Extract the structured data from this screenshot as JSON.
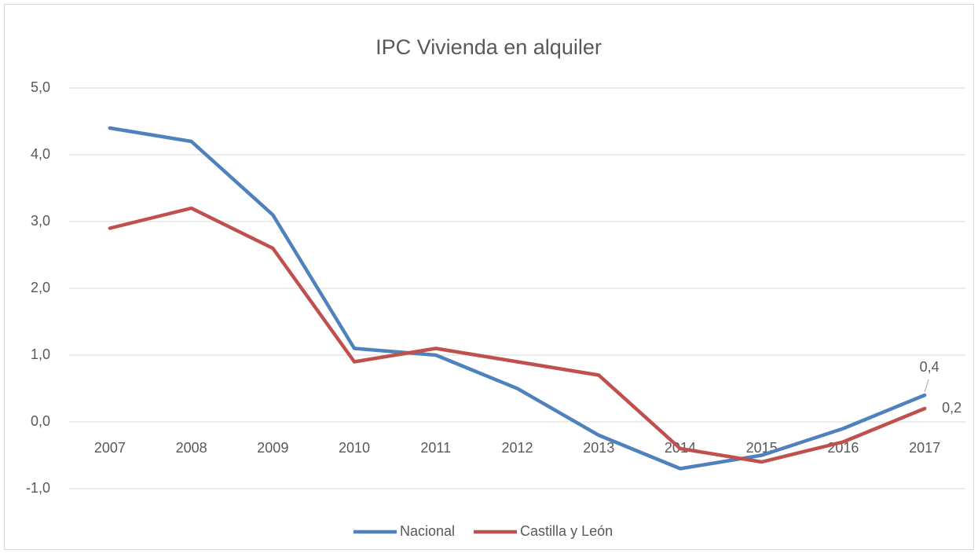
{
  "chart_data": {
    "type": "line",
    "title": "IPC Vivienda en alquiler",
    "categories": [
      "2007",
      "2008",
      "2009",
      "2010",
      "2011",
      "2012",
      "2013",
      "2014",
      "2015",
      "2016",
      "2017"
    ],
    "series": [
      {
        "name": "Nacional",
        "color": "#4f81bd",
        "values": [
          4.4,
          4.2,
          3.1,
          1.1,
          1.0,
          0.5,
          -0.2,
          -0.7,
          -0.5,
          -0.1,
          0.4
        ],
        "value_labels": [
          null,
          null,
          null,
          null,
          null,
          null,
          null,
          null,
          null,
          null,
          "0,4"
        ]
      },
      {
        "name": "Castilla y León",
        "color": "#c0504d",
        "values": [
          2.9,
          3.2,
          2.6,
          0.9,
          1.1,
          0.9,
          0.7,
          -0.4,
          -0.6,
          -0.3,
          0.2
        ],
        "value_labels": [
          null,
          null,
          null,
          null,
          null,
          null,
          null,
          null,
          null,
          null,
          "0,2"
        ]
      }
    ],
    "ylim": [
      -1,
      5
    ],
    "yticks": [
      {
        "value": -1,
        "label": "-1,0"
      },
      {
        "value": 0,
        "label": "0,0"
      },
      {
        "value": 1,
        "label": "1,0"
      },
      {
        "value": 2,
        "label": "2,0"
      },
      {
        "value": 3,
        "label": "3,0"
      },
      {
        "value": 4,
        "label": "4,0"
      },
      {
        "value": 5,
        "label": "5,0"
      }
    ],
    "grid": true,
    "legend": "bottom"
  }
}
